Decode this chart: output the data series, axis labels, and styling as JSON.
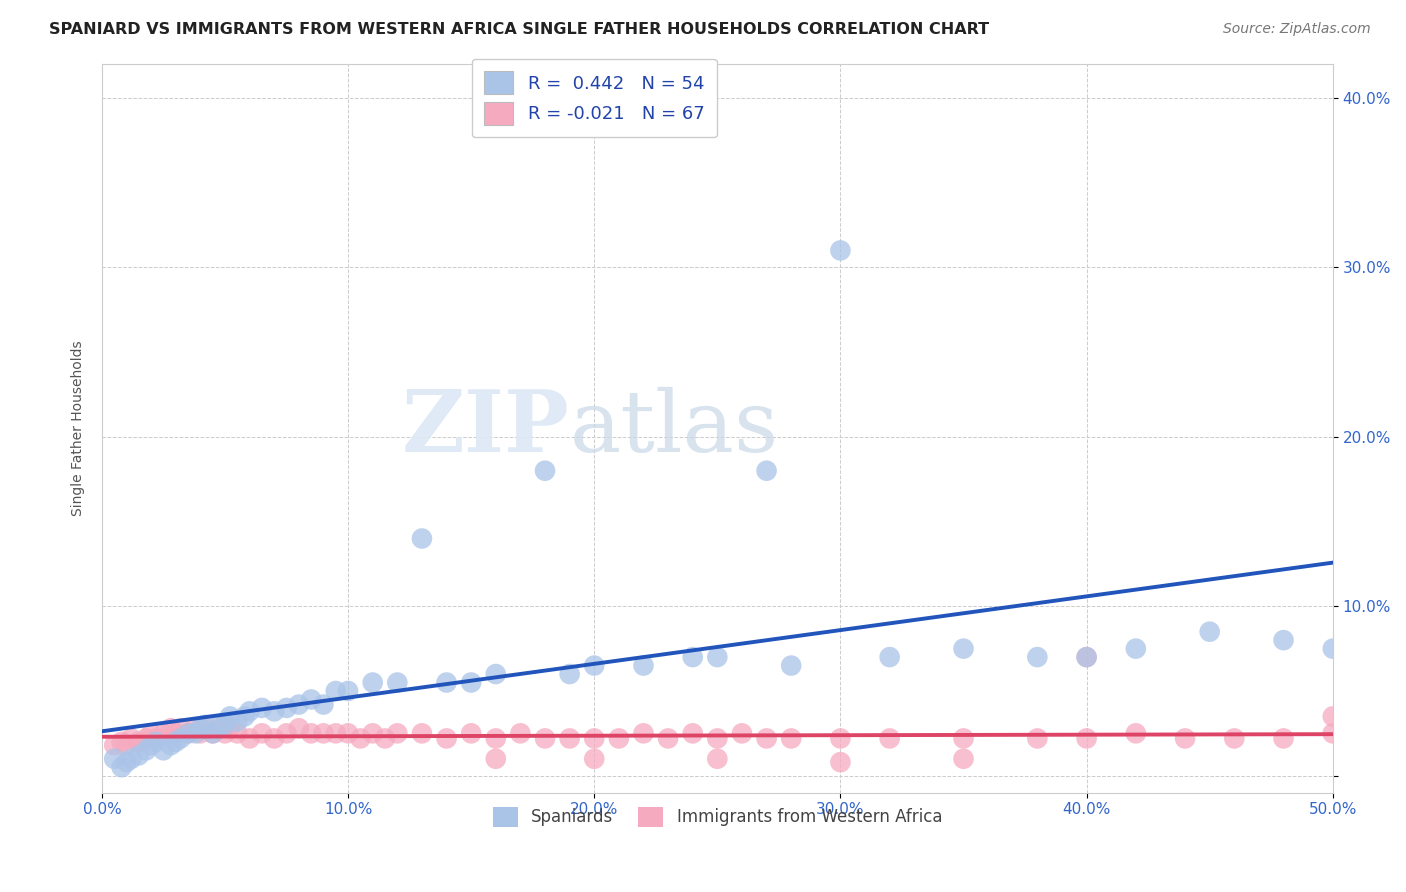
{
  "title": "SPANIARD VS IMMIGRANTS FROM WESTERN AFRICA SINGLE FATHER HOUSEHOLDS CORRELATION CHART",
  "source": "Source: ZipAtlas.com",
  "ylabel": "Single Father Households",
  "xlim": [
    0.0,
    0.5
  ],
  "ylim": [
    -0.01,
    0.42
  ],
  "watermark_zip": "ZIP",
  "watermark_atlas": "atlas",
  "legend_blue_label": "Spaniards",
  "legend_pink_label": "Immigrants from Western Africa",
  "R_blue": 0.442,
  "N_blue": 54,
  "R_pink": -0.021,
  "N_pink": 67,
  "blue_color": "#aac4e8",
  "pink_color": "#f5aabf",
  "blue_line_color": "#2255bb",
  "pink_line_color": "#dd4466",
  "spaniards_x": [
    0.005,
    0.008,
    0.01,
    0.012,
    0.015,
    0.018,
    0.02,
    0.022,
    0.025,
    0.028,
    0.03,
    0.032,
    0.035,
    0.038,
    0.04,
    0.042,
    0.045,
    0.048,
    0.05,
    0.052,
    0.055,
    0.058,
    0.06,
    0.065,
    0.07,
    0.075,
    0.08,
    0.085,
    0.09,
    0.095,
    0.1,
    0.11,
    0.12,
    0.13,
    0.14,
    0.15,
    0.16,
    0.18,
    0.19,
    0.2,
    0.22,
    0.24,
    0.25,
    0.27,
    0.28,
    0.3,
    0.32,
    0.35,
    0.38,
    0.4,
    0.42,
    0.45,
    0.48,
    0.5
  ],
  "spaniards_y": [
    0.01,
    0.005,
    0.008,
    0.01,
    0.012,
    0.015,
    0.018,
    0.02,
    0.015,
    0.018,
    0.02,
    0.022,
    0.025,
    0.025,
    0.028,
    0.03,
    0.025,
    0.03,
    0.03,
    0.035,
    0.032,
    0.035,
    0.038,
    0.04,
    0.038,
    0.04,
    0.042,
    0.045,
    0.042,
    0.05,
    0.05,
    0.055,
    0.055,
    0.14,
    0.055,
    0.055,
    0.06,
    0.18,
    0.06,
    0.065,
    0.065,
    0.07,
    0.07,
    0.18,
    0.065,
    0.31,
    0.07,
    0.075,
    0.07,
    0.07,
    0.075,
    0.085,
    0.08,
    0.075
  ],
  "immigrants_x": [
    0.005,
    0.008,
    0.01,
    0.012,
    0.015,
    0.018,
    0.02,
    0.022,
    0.025,
    0.028,
    0.03,
    0.032,
    0.035,
    0.038,
    0.04,
    0.042,
    0.045,
    0.048,
    0.05,
    0.052,
    0.055,
    0.06,
    0.065,
    0.07,
    0.075,
    0.08,
    0.085,
    0.09,
    0.095,
    0.1,
    0.105,
    0.11,
    0.115,
    0.12,
    0.13,
    0.14,
    0.15,
    0.16,
    0.17,
    0.18,
    0.19,
    0.2,
    0.21,
    0.22,
    0.23,
    0.24,
    0.25,
    0.26,
    0.27,
    0.28,
    0.3,
    0.32,
    0.35,
    0.38,
    0.4,
    0.42,
    0.44,
    0.46,
    0.48,
    0.5,
    0.16,
    0.2,
    0.25,
    0.35,
    0.5,
    0.3,
    0.4
  ],
  "immigrants_y": [
    0.018,
    0.02,
    0.018,
    0.022,
    0.02,
    0.022,
    0.025,
    0.022,
    0.025,
    0.028,
    0.025,
    0.028,
    0.025,
    0.028,
    0.025,
    0.028,
    0.025,
    0.028,
    0.025,
    0.028,
    0.025,
    0.022,
    0.025,
    0.022,
    0.025,
    0.028,
    0.025,
    0.025,
    0.025,
    0.025,
    0.022,
    0.025,
    0.022,
    0.025,
    0.025,
    0.022,
    0.025,
    0.022,
    0.025,
    0.022,
    0.022,
    0.022,
    0.022,
    0.025,
    0.022,
    0.025,
    0.022,
    0.025,
    0.022,
    0.022,
    0.022,
    0.022,
    0.022,
    0.022,
    0.022,
    0.025,
    0.022,
    0.022,
    0.022,
    0.025,
    0.01,
    0.01,
    0.01,
    0.01,
    0.035,
    0.008,
    0.07
  ]
}
